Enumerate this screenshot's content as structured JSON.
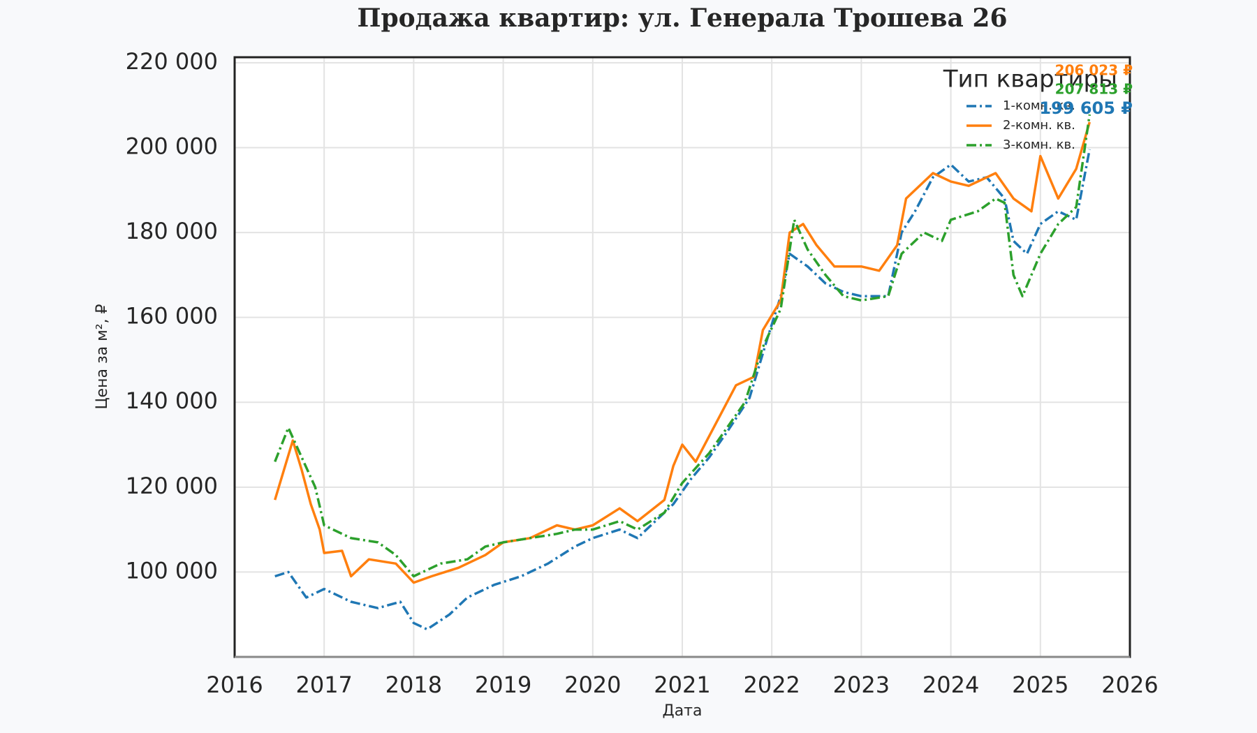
{
  "chart_data": {
    "type": "line",
    "title": "Продажа квартир: ул. Генерала Трошева 26",
    "x_label": "Дата",
    "y_label": "Цена за м², ₽",
    "legend_title": "Тип квартиры",
    "legend_position": "upper right",
    "grid": true,
    "xlim": [
      2016,
      2026
    ],
    "xticks": [
      2016,
      2017,
      2018,
      2019,
      2020,
      2021,
      2022,
      2023,
      2024,
      2025,
      2026
    ],
    "ylim": [
      80000,
      221300
    ],
    "yticks": [
      {
        "value": 100000,
        "label": "100 000"
      },
      {
        "value": 120000,
        "label": "120 000"
      },
      {
        "value": 140000,
        "label": "140 000"
      },
      {
        "value": 160000,
        "label": "160 000"
      },
      {
        "value": 180000,
        "label": "180 000"
      },
      {
        "value": 200000,
        "label": "200 000"
      },
      {
        "value": 220000,
        "label": "220 000"
      }
    ],
    "series": [
      {
        "name": "1-комн. кв.",
        "color": "#1f77b4",
        "linestyle": "dashdot",
        "end_label": "199 605 ₽",
        "x": [
          2016.45,
          2016.6,
          2016.8,
          2017.0,
          2017.3,
          2017.6,
          2017.85,
          2018.0,
          2018.15,
          2018.4,
          2018.6,
          2018.9,
          2019.2,
          2019.5,
          2019.8,
          2020.0,
          2020.3,
          2020.5,
          2020.7,
          2020.9,
          2021.1,
          2021.3,
          2021.5,
          2021.75,
          2021.95,
          2022.1,
          2022.2,
          2022.4,
          2022.6,
          2022.8,
          2023.0,
          2023.3,
          2023.45,
          2023.6,
          2023.8,
          2024.0,
          2024.2,
          2024.4,
          2024.6,
          2024.7,
          2024.85,
          2025.0,
          2025.2,
          2025.4,
          2025.55
        ],
        "values": [
          99000,
          100000,
          94000,
          96000,
          93000,
          91500,
          93000,
          88000,
          86500,
          90000,
          94000,
          97000,
          99000,
          102000,
          106000,
          108000,
          110000,
          108000,
          112000,
          116000,
          122000,
          127000,
          133000,
          141000,
          155000,
          165000,
          175000,
          172000,
          168000,
          166000,
          165000,
          165000,
          180000,
          185000,
          193000,
          196000,
          192000,
          193000,
          188000,
          178000,
          175000,
          182000,
          185000,
          183000,
          199605
        ]
      },
      {
        "name": "2-комн. кв.",
        "color": "#ff7f0e",
        "linestyle": "solid",
        "end_label": "206 023 ₽",
        "x": [
          2016.45,
          2016.55,
          2016.65,
          2016.75,
          2016.85,
          2016.95,
          2017.0,
          2017.2,
          2017.3,
          2017.5,
          2017.8,
          2018.0,
          2018.2,
          2018.5,
          2018.8,
          2019.0,
          2019.3,
          2019.6,
          2019.8,
          2020.0,
          2020.3,
          2020.5,
          2020.8,
          2020.9,
          2021.0,
          2021.15,
          2021.4,
          2021.6,
          2021.8,
          2021.9,
          2022.1,
          2022.2,
          2022.35,
          2022.5,
          2022.7,
          2023.0,
          2023.2,
          2023.4,
          2023.5,
          2023.8,
          2024.0,
          2024.2,
          2024.5,
          2024.7,
          2024.9,
          2025.0,
          2025.2,
          2025.4,
          2025.55
        ],
        "values": [
          117000,
          124000,
          131000,
          124000,
          116000,
          110000,
          104500,
          105000,
          99000,
          103000,
          102000,
          97500,
          99000,
          101000,
          104000,
          107000,
          108000,
          111000,
          110000,
          111000,
          115000,
          112000,
          117000,
          125000,
          130000,
          126000,
          136000,
          144000,
          146000,
          157000,
          164000,
          180000,
          182000,
          177000,
          172000,
          172000,
          171000,
          177000,
          188000,
          194000,
          192000,
          191000,
          194000,
          188000,
          185000,
          198000,
          188000,
          195000,
          206023
        ]
      },
      {
        "name": "3-комн. кв.",
        "color": "#2ca02c",
        "linestyle": "dashdot",
        "end_label": "207 813 ₽",
        "x": [
          2016.45,
          2016.6,
          2016.75,
          2016.9,
          2017.0,
          2017.3,
          2017.6,
          2017.8,
          2018.0,
          2018.3,
          2018.6,
          2018.8,
          2019.0,
          2019.3,
          2019.6,
          2019.8,
          2020.0,
          2020.3,
          2020.5,
          2020.8,
          2021.0,
          2021.3,
          2021.5,
          2021.7,
          2021.9,
          2022.1,
          2022.25,
          2022.4,
          2022.6,
          2022.8,
          2023.0,
          2023.3,
          2023.45,
          2023.7,
          2023.9,
          2024.0,
          2024.3,
          2024.5,
          2024.6,
          2024.7,
          2024.8,
          2025.0,
          2025.2,
          2025.4,
          2025.55
        ],
        "values": [
          126000,
          134000,
          127000,
          120000,
          111000,
          108000,
          107000,
          104000,
          99000,
          102000,
          103000,
          106000,
          107000,
          108000,
          109000,
          110000,
          110000,
          112000,
          110000,
          114000,
          121000,
          128000,
          134000,
          140000,
          153000,
          162000,
          183000,
          176000,
          170000,
          165000,
          164000,
          165000,
          175000,
          180000,
          178000,
          183000,
          185000,
          188000,
          187000,
          170000,
          165000,
          175000,
          182000,
          186000,
          207813
        ]
      }
    ]
  }
}
